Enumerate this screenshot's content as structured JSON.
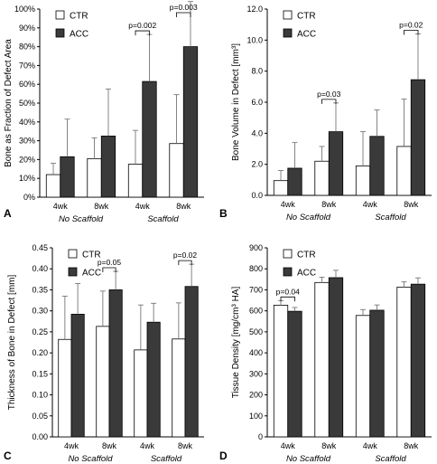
{
  "colors": {
    "CTR": "#ffffff",
    "ACC": "#3a3a3a",
    "axis": "#000000",
    "error": "#777777"
  },
  "chart_data": [
    {
      "panel_label": "A",
      "type": "bar",
      "ylabel": "Bone as Fraction of Defect Area",
      "ylim": [
        0,
        100
      ],
      "ytick_step": 10,
      "ytick_suffix": "%",
      "ytick_decimals": 0,
      "categories": [
        "4wk",
        "8wk",
        "4wk",
        "8wk"
      ],
      "groups": [
        {
          "label": "No Scaffold",
          "span": [
            0,
            1
          ]
        },
        {
          "label": "Scaffold",
          "span": [
            2,
            3
          ]
        }
      ],
      "series": [
        {
          "name": "CTR",
          "values": [
            12,
            20.5,
            17.5,
            28.5
          ],
          "errors": [
            6,
            11,
            18,
            26
          ]
        },
        {
          "name": "ACC",
          "values": [
            21.5,
            32.5,
            61.5,
            80
          ],
          "errors": [
            20,
            25,
            25,
            24
          ]
        }
      ],
      "annotations": [
        {
          "text": "p=0.002",
          "category": 2
        },
        {
          "text": "p=0.003",
          "category": 3
        }
      ]
    },
    {
      "panel_label": "B",
      "type": "bar",
      "ylabel": "Bone Volume in Defect [mm³]",
      "ylim": [
        0,
        12
      ],
      "ytick_step": 2,
      "ytick_suffix": "",
      "ytick_decimals": 1,
      "categories": [
        "4wk",
        "8wk",
        "4wk",
        "8wk"
      ],
      "groups": [
        {
          "label": "No Scaffold",
          "span": [
            0,
            1
          ]
        },
        {
          "label": "Scaffold",
          "span": [
            2,
            3
          ]
        }
      ],
      "series": [
        {
          "name": "CTR",
          "values": [
            0.95,
            2.2,
            1.9,
            3.15
          ],
          "errors": [
            0.65,
            0.95,
            2.2,
            3.05
          ]
        },
        {
          "name": "ACC",
          "values": [
            1.75,
            4.1,
            3.8,
            7.45
          ],
          "errors": [
            1.65,
            1.85,
            1.7,
            2.95
          ]
        }
      ],
      "annotations": [
        {
          "text": "p=0.03",
          "category": 1
        },
        {
          "text": "p=0.02",
          "category": 3
        }
      ]
    },
    {
      "panel_label": "C",
      "type": "bar",
      "ylabel": "Thickness of Bone in Defect [mm]",
      "ylim": [
        0,
        0.45
      ],
      "ytick_step": 0.05,
      "ytick_suffix": "",
      "ytick_decimals": 2,
      "categories": [
        "4wk",
        "8wk",
        "4wk",
        "8wk"
      ],
      "groups": [
        {
          "label": "No Scaffold",
          "span": [
            0,
            1
          ]
        },
        {
          "label": "Scaffold",
          "span": [
            2,
            3
          ]
        }
      ],
      "series": [
        {
          "name": "CTR",
          "values": [
            0.232,
            0.263,
            0.207,
            0.233
          ],
          "errors": [
            0.103,
            0.084,
            0.107,
            0.086
          ]
        },
        {
          "name": "ACC",
          "values": [
            0.292,
            0.35,
            0.273,
            0.358
          ],
          "errors": [
            0.073,
            0.044,
            0.045,
            0.053
          ]
        }
      ],
      "annotations": [
        {
          "text": "p=0.05",
          "category": 1
        },
        {
          "text": "p=0.02",
          "category": 3
        }
      ]
    },
    {
      "panel_label": "D",
      "type": "bar",
      "ylabel": "Tissue Density [mg/cm³ HA]",
      "ylim": [
        0,
        900
      ],
      "ytick_step": 100,
      "ytick_suffix": "",
      "ytick_decimals": 0,
      "categories": [
        "4wk",
        "8wk",
        "4wk",
        "8wk"
      ],
      "groups": [
        {
          "label": "No Scaffold",
          "span": [
            0,
            1
          ]
        },
        {
          "label": "Scaffold",
          "span": [
            2,
            3
          ]
        }
      ],
      "series": [
        {
          "name": "CTR",
          "values": [
            627,
            735,
            578,
            713
          ],
          "errors": [
            22,
            25,
            28,
            25
          ]
        },
        {
          "name": "ACC",
          "values": [
            598,
            758,
            603,
            727
          ],
          "errors": [
            18,
            35,
            25,
            30
          ]
        }
      ],
      "annotations": [
        {
          "text": "p=0.04",
          "category": 0
        }
      ]
    }
  ]
}
